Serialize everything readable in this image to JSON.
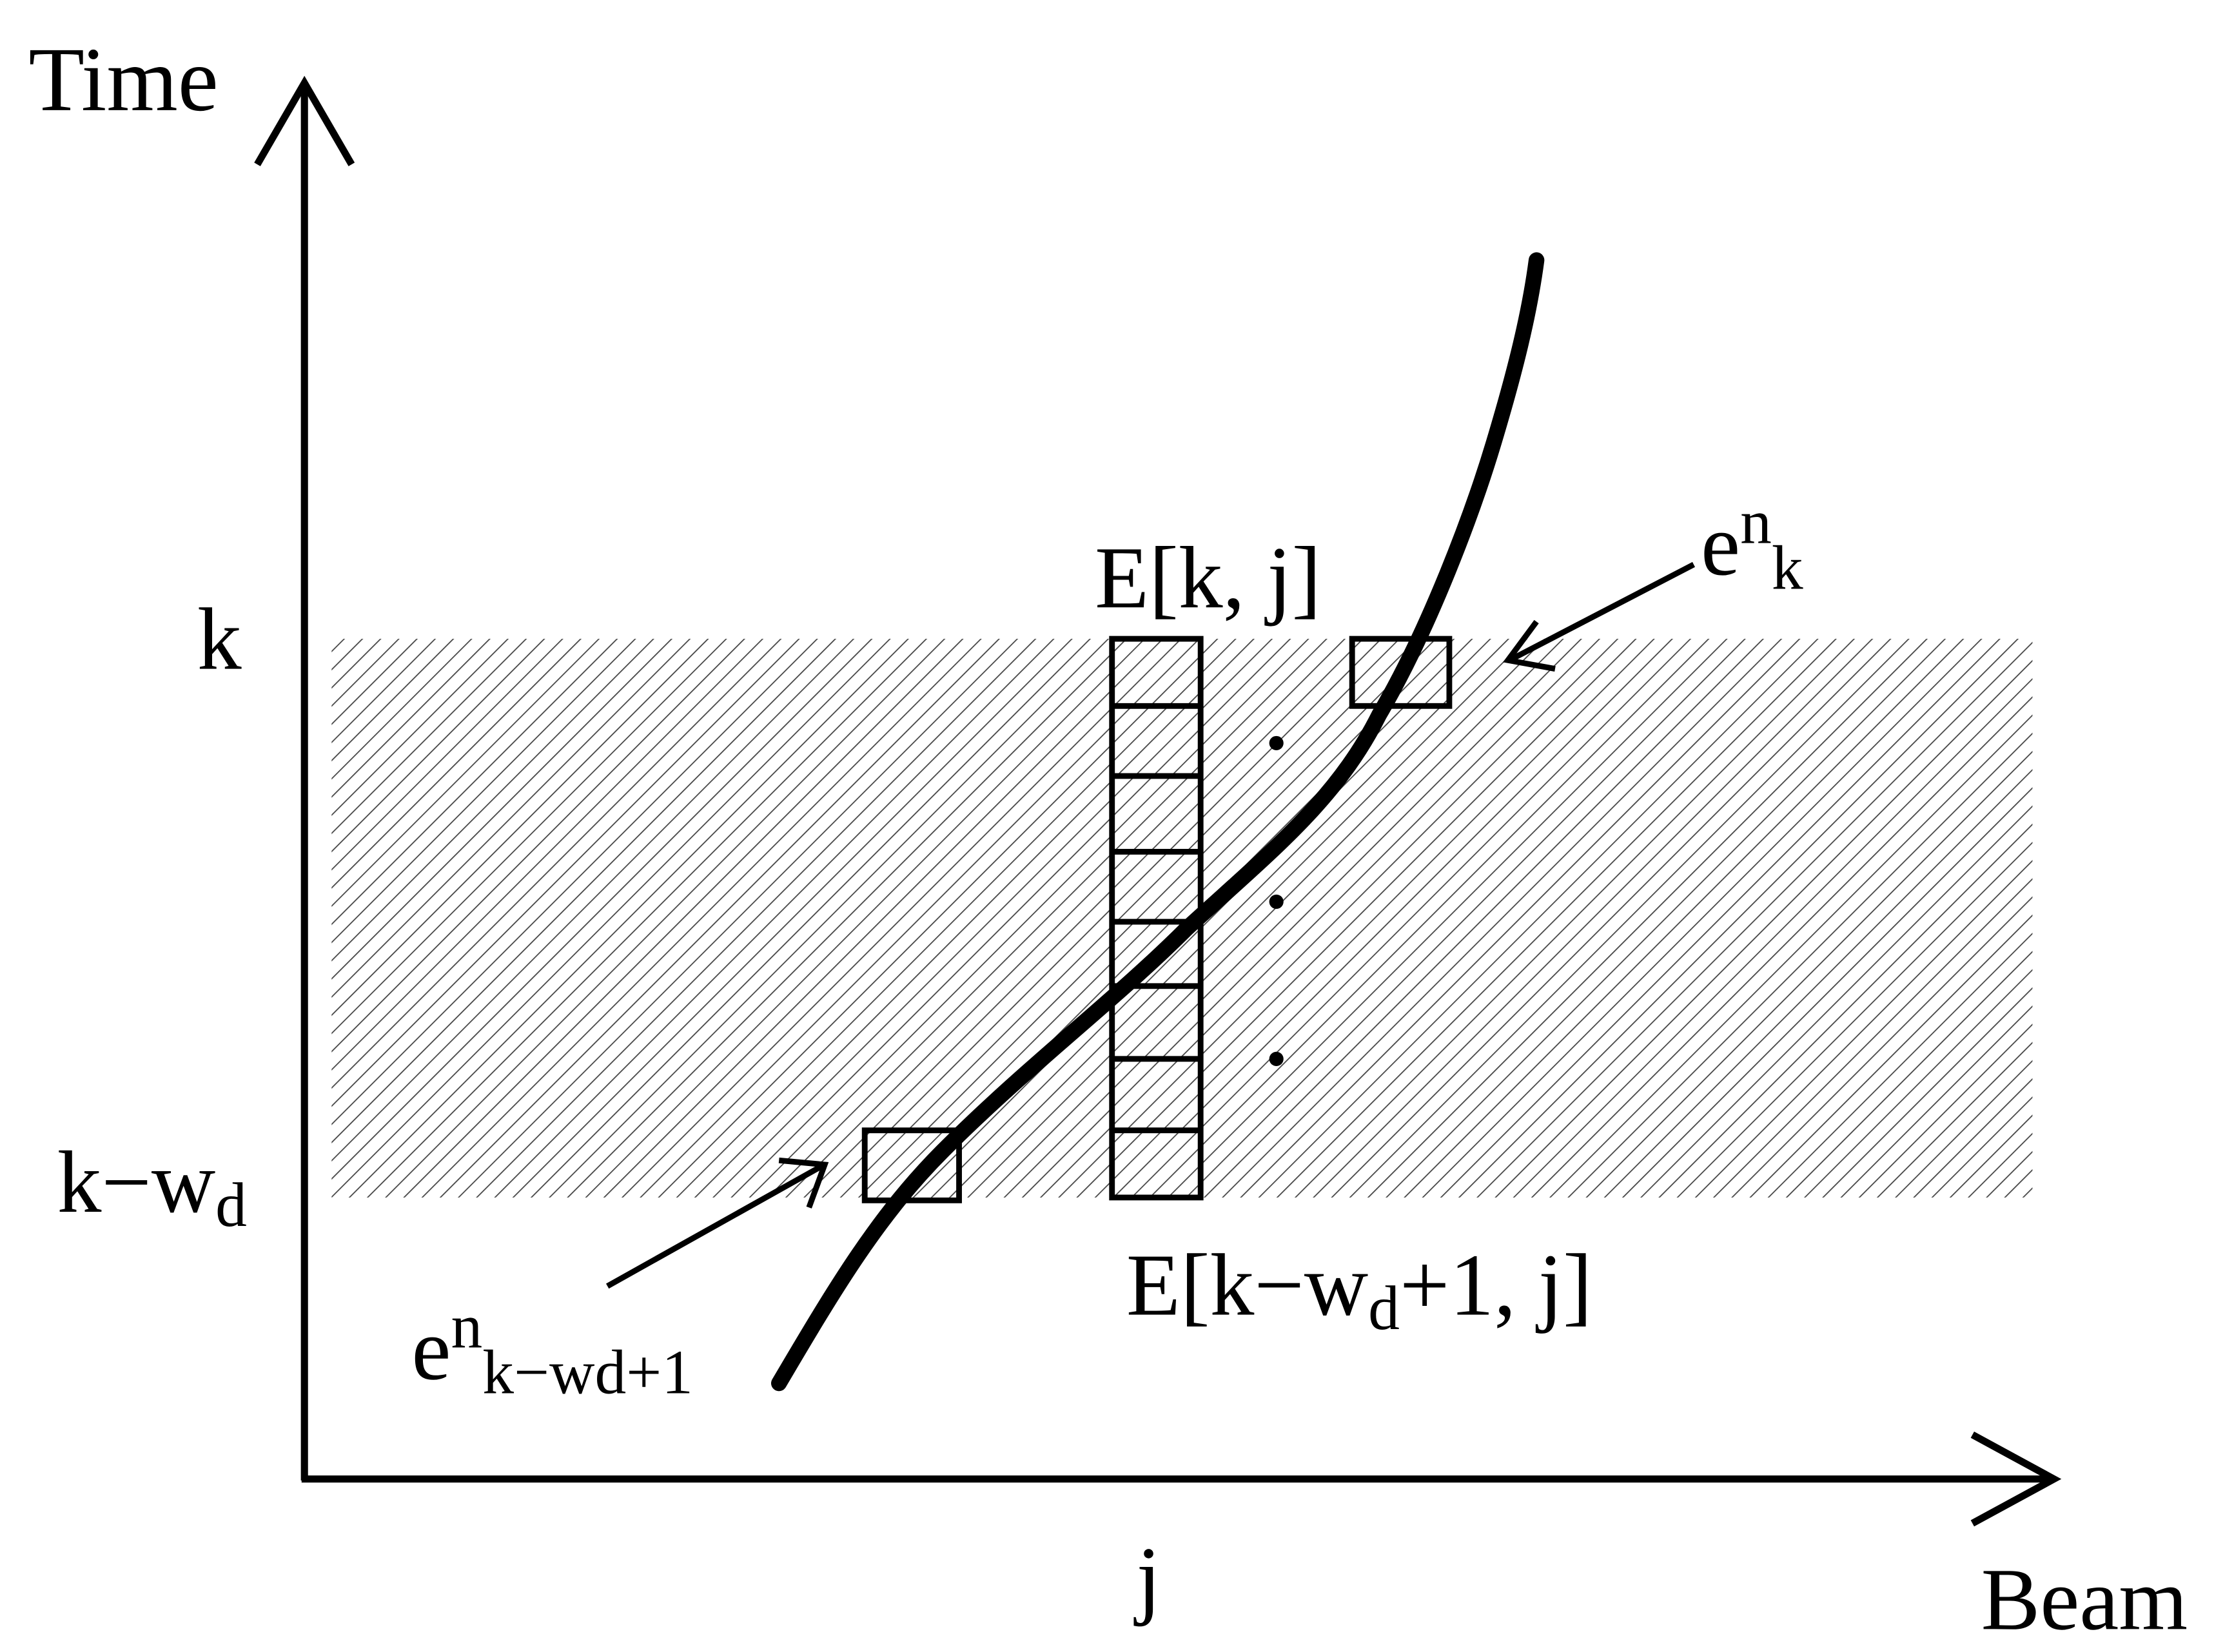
{
  "axes": {
    "y_label": "Time",
    "x_label": "Beam"
  },
  "ticks": {
    "k": "k",
    "k_minus_wd": {
      "base": "k−w",
      "sub": "d"
    },
    "j": "j"
  },
  "annotations": {
    "top_cell": "E[k, j]",
    "bottom_cell": {
      "base": "E[k−w",
      "sub": "d",
      "rest": "+1, j]"
    },
    "e_k": {
      "base": "e",
      "sup": "n",
      "sub": "k"
    },
    "e_kwd": {
      "base": "e",
      "sup": "n",
      "sub": "k−wd+1"
    }
  }
}
